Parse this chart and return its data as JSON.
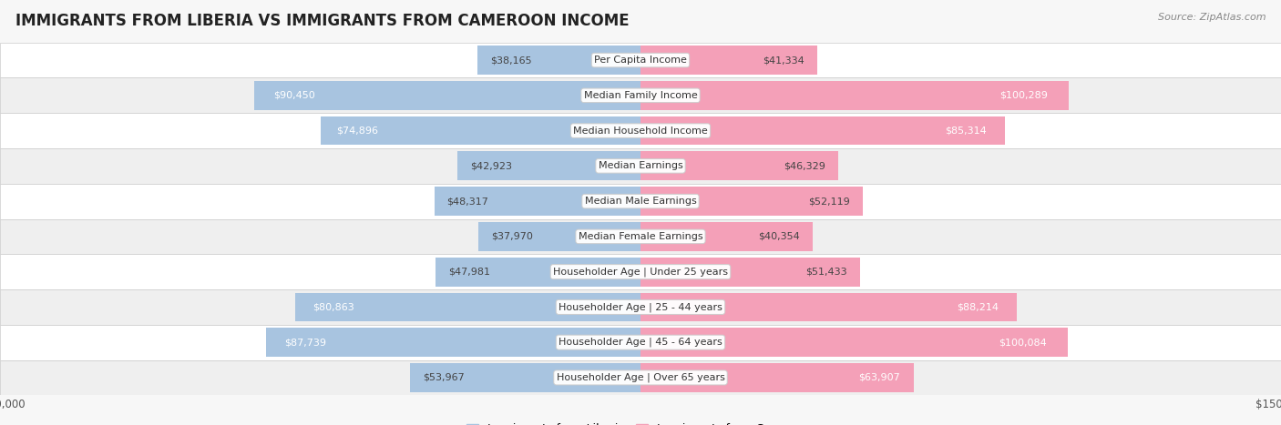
{
  "title": "IMMIGRANTS FROM LIBERIA VS IMMIGRANTS FROM CAMEROON INCOME",
  "source": "Source: ZipAtlas.com",
  "categories": [
    "Per Capita Income",
    "Median Family Income",
    "Median Household Income",
    "Median Earnings",
    "Median Male Earnings",
    "Median Female Earnings",
    "Householder Age | Under 25 years",
    "Householder Age | 25 - 44 years",
    "Householder Age | 45 - 64 years",
    "Householder Age | Over 65 years"
  ],
  "liberia_values": [
    38165,
    90450,
    74896,
    42923,
    48317,
    37970,
    47981,
    80863,
    87739,
    53967
  ],
  "cameroon_values": [
    41334,
    100289,
    85314,
    46329,
    52119,
    40354,
    51433,
    88214,
    100084,
    63907
  ],
  "liberia_labels": [
    "$38,165",
    "$90,450",
    "$74,896",
    "$42,923",
    "$48,317",
    "$37,970",
    "$47,981",
    "$80,863",
    "$87,739",
    "$53,967"
  ],
  "cameroon_labels": [
    "$41,334",
    "$100,289",
    "$85,314",
    "$46,329",
    "$52,119",
    "$40,354",
    "$51,433",
    "$88,214",
    "$100,084",
    "$63,907"
  ],
  "liberia_color": "#a8c4e0",
  "cameroon_color": "#f4a0b8",
  "max_val": 150000,
  "background_color": "#f7f7f7",
  "row_colors": [
    "#ffffff",
    "#efefef"
  ],
  "title_fontsize": 12,
  "label_fontsize": 8,
  "category_fontsize": 8,
  "legend_fontsize": 9,
  "source_fontsize": 8,
  "inside_label_threshold": 55000,
  "inside_label_color": "white",
  "outside_label_color": "#444444"
}
